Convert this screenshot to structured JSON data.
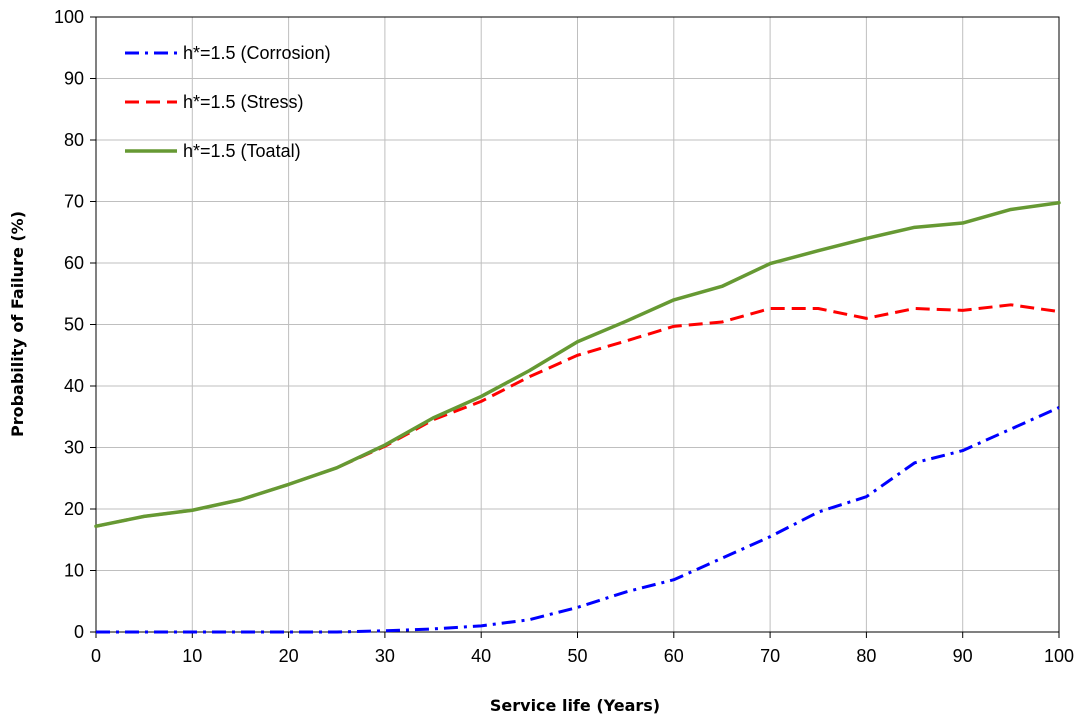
{
  "chart_data": {
    "type": "line",
    "title": "",
    "xlabel": "Service life (Years)",
    "ylabel": "Probability of Failure (%)",
    "xlim": [
      0,
      100
    ],
    "ylim": [
      0,
      100
    ],
    "xticks": [
      "0",
      "10",
      "20",
      "30",
      "40",
      "50",
      "60",
      "70",
      "80",
      "90",
      "100"
    ],
    "yticks": [
      "0",
      "10",
      "20",
      "30",
      "40",
      "50",
      "60",
      "70",
      "80",
      "90",
      "100"
    ],
    "grid": true,
    "legend_position": "top-left",
    "series": [
      {
        "name": "h*=1.5 (Corrosion)",
        "color": "#0000FF",
        "style": "dash-dot",
        "x": [
          0,
          5,
          10,
          15,
          20,
          25,
          30,
          35,
          40,
          45,
          50,
          55,
          60,
          65,
          70,
          75,
          80,
          85,
          90,
          95,
          100
        ],
        "y": [
          0,
          0,
          0,
          0,
          0,
          0,
          0.2,
          0.5,
          1,
          2,
          4,
          6.5,
          8.5,
          12,
          15.5,
          19.5,
          22,
          27.5,
          29.5,
          33,
          36.5
        ]
      },
      {
        "name": "h*=1.5 (Stress)",
        "color": "#FF0000",
        "style": "dashed",
        "x": [
          0,
          5,
          10,
          15,
          20,
          25,
          30,
          35,
          40,
          45,
          50,
          55,
          60,
          65,
          70,
          75,
          80,
          85,
          90,
          95,
          100
        ],
        "y": [
          17.2,
          18.8,
          19.8,
          21.5,
          24,
          26.7,
          30.2,
          34.5,
          37.5,
          41.5,
          45,
          47.3,
          49.7,
          50.4,
          52.6,
          52.6,
          51,
          52.6,
          52.3,
          53.2,
          52.1
        ]
      },
      {
        "name": "h*=1.5 (Toatal)",
        "color": "#669933",
        "style": "solid",
        "x": [
          0,
          5,
          10,
          15,
          20,
          25,
          30,
          35,
          40,
          45,
          50,
          55,
          60,
          65,
          70,
          75,
          80,
          85,
          90,
          95,
          100
        ],
        "y": [
          17.2,
          18.8,
          19.8,
          21.5,
          24,
          26.7,
          30.4,
          34.8,
          38.3,
          42.5,
          47.2,
          50.5,
          54,
          56.2,
          59.9,
          62,
          64,
          65.8,
          66.5,
          68.7,
          69.8
        ]
      }
    ]
  }
}
